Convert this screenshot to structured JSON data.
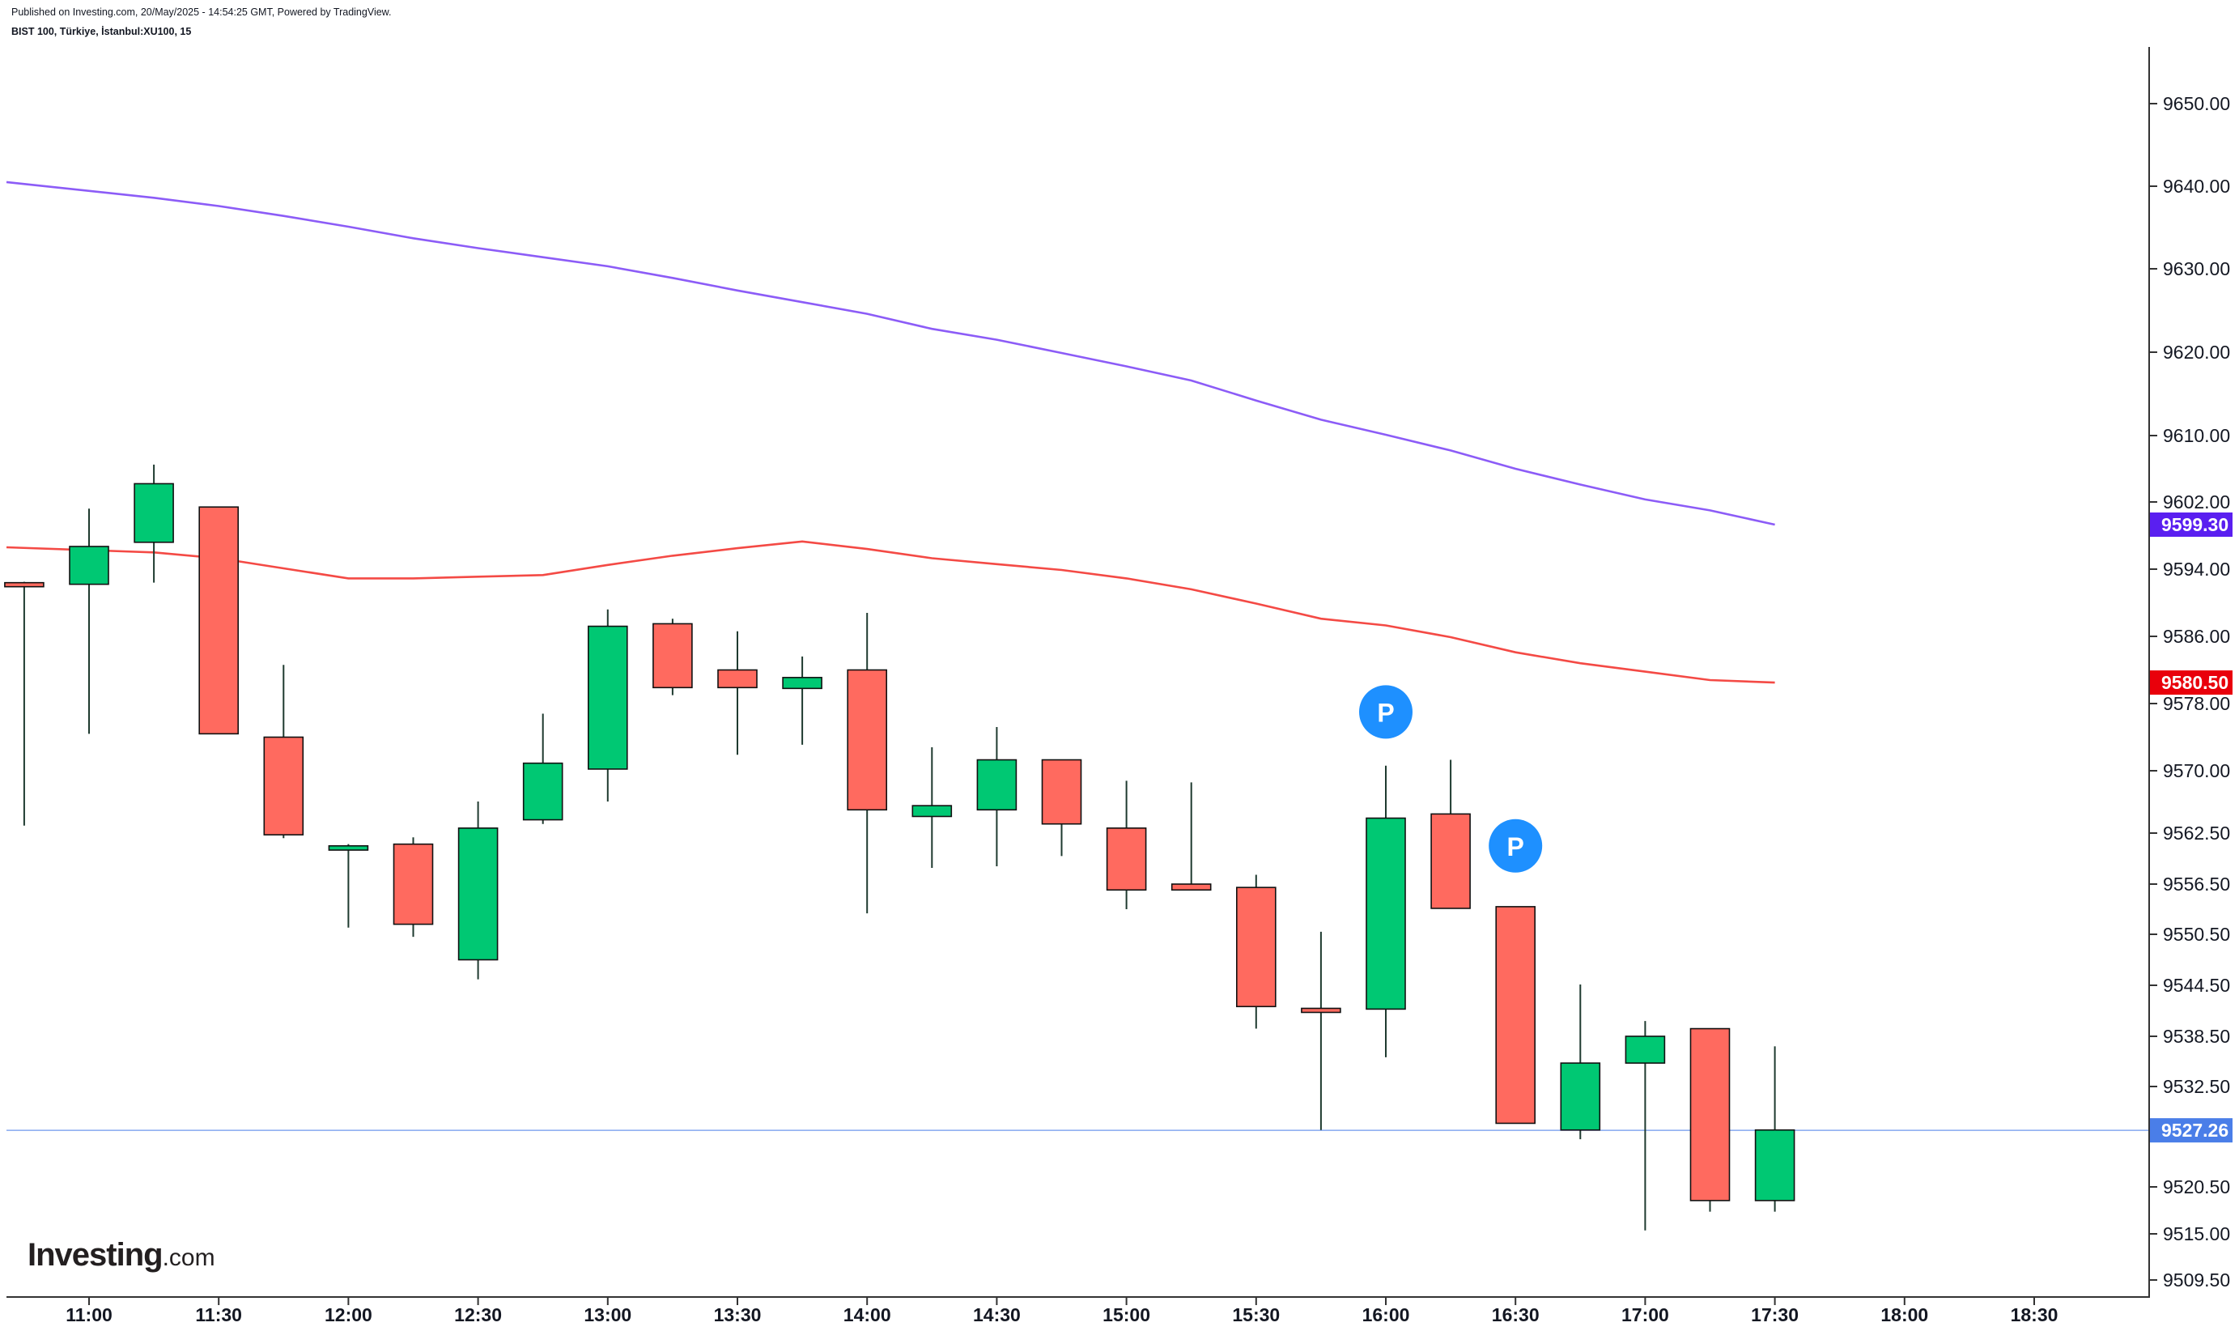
{
  "header": {
    "published": "Published on Investing.com, 20/May/2025 - 14:54:25 GMT, Powered by TradingView.",
    "symbol": "BIST 100, Türkiye, İstanbul:XU100, 15"
  },
  "logo": {
    "brand": "Investing",
    "suffix": ".com"
  },
  "colors": {
    "up": "#00c873",
    "down": "#ff6a5f",
    "wick": "#1e3a2f",
    "sma_purple": "#8c5cf7",
    "sma_red": "#f44a45",
    "last_price": "#4a7ee8",
    "axis": "#333333",
    "text": "#131722",
    "marker": "#1e90ff"
  },
  "chart_data": {
    "type": "candlestick",
    "title": "BIST 100, Türkiye, İstanbul:XU100, 15",
    "x_ticks": [
      "11:00",
      "11:30",
      "12:00",
      "12:30",
      "13:00",
      "13:30",
      "14:00",
      "14:30",
      "15:00",
      "15:30",
      "16:00",
      "16:30",
      "17:00",
      "17:30",
      "18:00",
      "18:30"
    ],
    "y_ticks": [
      "9650.00",
      "9640.00",
      "9630.00",
      "9620.00",
      "9610.00",
      "9602.00",
      "9594.00",
      "9586.00",
      "9578.00",
      "9570.00",
      "9562.50",
      "9556.50",
      "9550.50",
      "9544.50",
      "9538.50",
      "9532.50",
      "9520.50",
      "9515.00",
      "9509.50"
    ],
    "candles": [
      {
        "time": "10:45",
        "open": 9592.3,
        "high": 9592.5,
        "low": 9563.4,
        "close": 9592.0
      },
      {
        "time": "11:00",
        "open": 9592.2,
        "high": 9601.2,
        "low": 9574.4,
        "close": 9596.7
      },
      {
        "time": "11:15",
        "open": 9597.2,
        "high": 9606.5,
        "low": 9592.4,
        "close": 9604.2
      },
      {
        "time": "11:30",
        "open": 9601.4,
        "high": 9601.4,
        "low": 9574.4,
        "close": 9574.4
      },
      {
        "time": "11:45",
        "open": 9574.0,
        "high": 9582.6,
        "low": 9561.9,
        "close": 9562.3
      },
      {
        "time": "12:00",
        "open": 9560.5,
        "high": 9561.2,
        "low": 9551.3,
        "close": 9561.0
      },
      {
        "time": "12:15",
        "open": 9561.2,
        "high": 9562.0,
        "low": 9550.2,
        "close": 9551.7
      },
      {
        "time": "12:30",
        "open": 9547.5,
        "high": 9566.3,
        "low": 9545.2,
        "close": 9563.1
      },
      {
        "time": "12:45",
        "open": 9564.1,
        "high": 9576.8,
        "low": 9563.6,
        "close": 9570.9
      },
      {
        "time": "13:00",
        "open": 9570.2,
        "high": 9589.2,
        "low": 9566.3,
        "close": 9587.2
      },
      {
        "time": "13:15",
        "open": 9587.5,
        "high": 9588.1,
        "low": 9579.0,
        "close": 9579.9
      },
      {
        "time": "13:30",
        "open": 9582.0,
        "high": 9586.6,
        "low": 9571.9,
        "close": 9579.9
      },
      {
        "time": "13:45",
        "open": 9579.8,
        "high": 9583.6,
        "low": 9573.1,
        "close": 9581.1
      },
      {
        "time": "14:00",
        "open": 9582.0,
        "high": 9588.8,
        "low": 9553.0,
        "close": 9565.3
      },
      {
        "time": "14:15",
        "open": 9564.5,
        "high": 9572.8,
        "low": 9558.4,
        "close": 9565.8
      },
      {
        "time": "14:30",
        "open": 9565.3,
        "high": 9575.2,
        "low": 9558.6,
        "close": 9571.3
      },
      {
        "time": "14:45",
        "open": 9571.3,
        "high": 9571.3,
        "low": 9559.8,
        "close": 9563.6
      },
      {
        "time": "15:00",
        "open": 9563.1,
        "high": 9568.8,
        "low": 9553.5,
        "close": 9555.8
      },
      {
        "time": "15:15",
        "open": 9556.5,
        "high": 9568.6,
        "low": 9555.8,
        "close": 9555.8
      },
      {
        "time": "15:30",
        "open": 9556.1,
        "high": 9557.6,
        "low": 9539.4,
        "close": 9542.0
      },
      {
        "time": "15:45",
        "open": 9541.7,
        "high": 9550.8,
        "low": 9527.3,
        "close": 9541.4
      },
      {
        "time": "16:00",
        "open": 9541.7,
        "high": 9570.6,
        "low": 9536.0,
        "close": 9564.3
      },
      {
        "time": "16:15",
        "open": 9564.8,
        "high": 9571.3,
        "low": 9553.6,
        "close": 9553.6
      },
      {
        "time": "16:30",
        "open": 9553.8,
        "high": 9553.8,
        "low": 9528.1,
        "close": 9528.1
      },
      {
        "time": "16:45",
        "open": 9527.3,
        "high": 9544.6,
        "low": 9526.2,
        "close": 9535.3
      },
      {
        "time": "17:00",
        "open": 9535.3,
        "high": 9540.3,
        "low": 9515.4,
        "close": 9538.5
      },
      {
        "time": "17:15",
        "open": 9539.4,
        "high": 9539.4,
        "low": 9517.6,
        "close": 9518.9
      },
      {
        "time": "17:30",
        "open": 9518.9,
        "high": 9537.3,
        "low": 9517.6,
        "close": 9527.3
      }
    ],
    "series": [
      {
        "type": "line",
        "x": [
          "10:45",
          "11:15",
          "11:30",
          "11:45",
          "12:00",
          "12:15",
          "12:30",
          "12:45",
          "13:00",
          "13:15",
          "13:30",
          "13:45",
          "14:00",
          "14:15",
          "14:30",
          "14:45",
          "15:00",
          "15:15",
          "15:30",
          "15:45",
          "16:00",
          "16:15",
          "16:30",
          "16:45",
          "17:00",
          "17:15",
          "17:30"
        ],
        "values": [
          9640.5,
          9638.6,
          9637.6,
          9636.4,
          9635.1,
          9633.7,
          9632.5,
          9631.4,
          9630.3,
          9628.9,
          9627.4,
          9626.0,
          9624.6,
          9622.8,
          9621.5,
          9619.9,
          9618.3,
          9616.6,
          9614.2,
          9611.9,
          9610.1,
          9608.2,
          9606.0,
          9604.1,
          9602.3,
          9601.0,
          9599.3
        ]
      },
      {
        "type": "line",
        "x": [
          "10:45",
          "11:15",
          "11:30",
          "11:45",
          "12:00",
          "12:15",
          "12:30",
          "12:45",
          "13:00",
          "13:15",
          "13:30",
          "13:45",
          "14:00",
          "14:15",
          "14:30",
          "14:45",
          "15:00",
          "15:15",
          "15:30",
          "15:45",
          "16:00",
          "16:15",
          "16:30",
          "16:45",
          "17:00",
          "17:15",
          "17:30"
        ],
        "values": [
          9596.6,
          9596.0,
          9595.3,
          9594.1,
          9592.9,
          9592.9,
          9593.1,
          9593.3,
          9594.5,
          9595.6,
          9596.5,
          9597.3,
          9596.4,
          9595.3,
          9594.6,
          9593.9,
          9592.9,
          9591.6,
          9589.9,
          9588.1,
          9587.3,
          9585.9,
          9584.1,
          9582.8,
          9581.8,
          9580.8,
          9580.5
        ]
      }
    ],
    "price_labels": [
      {
        "value": "9599.30",
        "color": "#5a1ff0"
      },
      {
        "value": "9580.50",
        "color": "#e9000b"
      },
      {
        "value": "9527.26",
        "color": "#4a7ee8"
      }
    ],
    "last_price_line": 9527.26,
    "markers": [
      {
        "time": "16:00",
        "label": "P",
        "value": 9577.0
      },
      {
        "time": "16:30",
        "label": "P",
        "value": 9561.0
      }
    ],
    "y_axis_side": "right",
    "grid": false,
    "legend": "none"
  }
}
